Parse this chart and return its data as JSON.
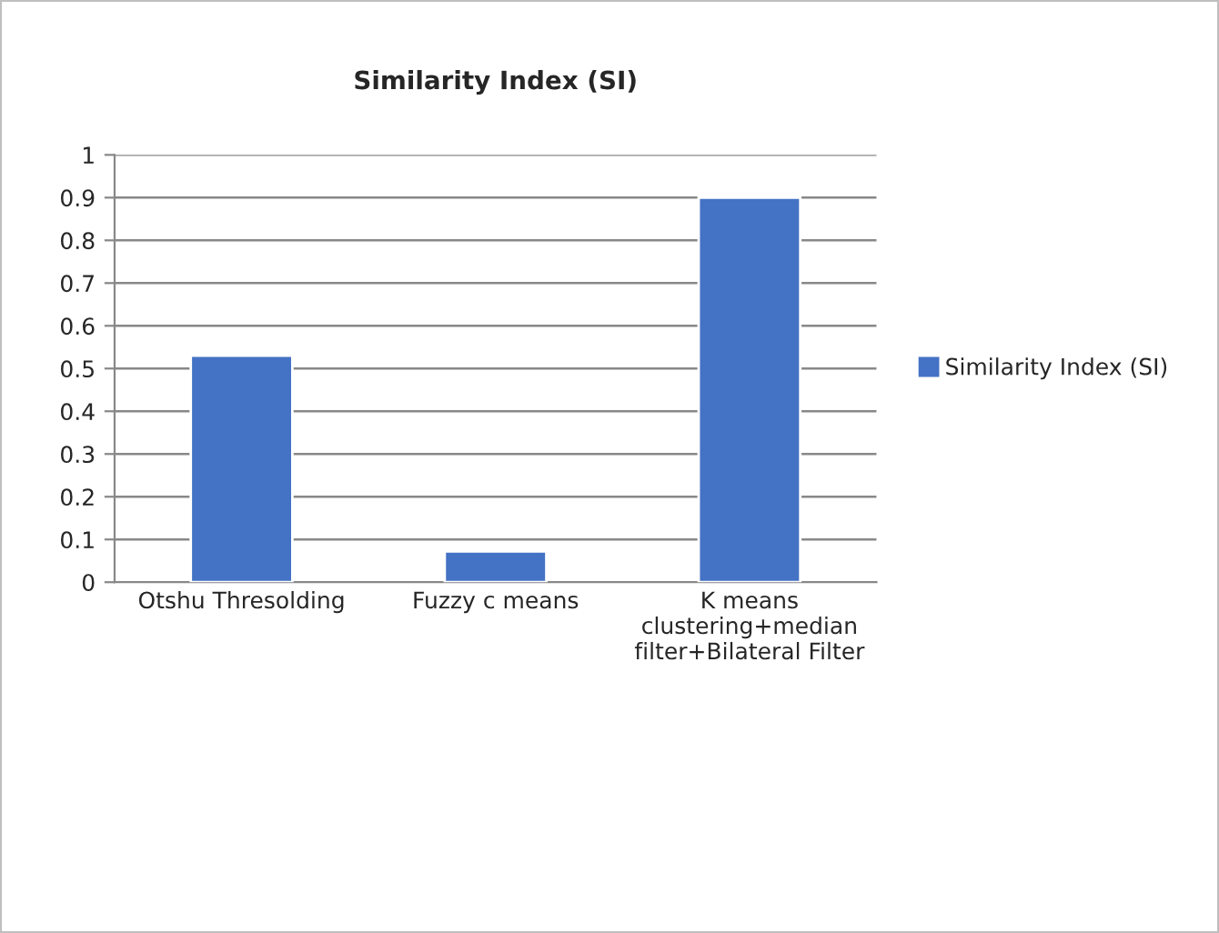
{
  "chart_data": {
    "type": "bar",
    "title": "Similarity Index (SI)",
    "categories": [
      "Otshu Thresolding",
      "Fuzzy c means",
      "K means\nclustering+median\nfilter+Bilateral Filter"
    ],
    "series": [
      {
        "name": "Similarity Index (SI)",
        "color": "#4472c4",
        "values": [
          0.53,
          0.072,
          0.9
        ]
      }
    ],
    "ylim": [
      0,
      1
    ],
    "yticks": [
      0,
      {
        "value": 0.1,
        "label": "0.1"
      },
      {
        "value": 0.2,
        "label": "0.2"
      },
      {
        "value": 0.3,
        "label": "0.3"
      },
      {
        "value": 0.4,
        "label": "0.4"
      },
      {
        "value": 0.5,
        "label": "0.5"
      },
      {
        "value": 0.6,
        "label": "0.6"
      },
      {
        "value": 0.7,
        "label": "0.7"
      },
      {
        "value": 0.8,
        "label": "0.8"
      },
      {
        "value": 0.9,
        "label": "0.9"
      },
      1
    ],
    "grid": "y",
    "legend": "right"
  }
}
